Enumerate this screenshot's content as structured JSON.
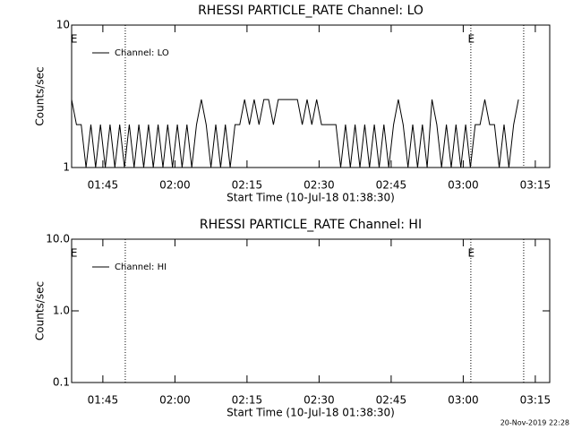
{
  "chart_data": [
    {
      "type": "line",
      "title": "RHESSI PARTICLE_RATE Channel: LO",
      "xlabel": "Start Time (10-Jul-18 01:38:30)",
      "ylabel": "Counts/sec",
      "log_y": true,
      "ylim": [
        1,
        10
      ],
      "yticks": [
        1,
        10
      ],
      "xlim": [
        0,
        5970
      ],
      "xticks": [
        {
          "value": 390,
          "label": "01:45"
        },
        {
          "value": 1290,
          "label": "02:00"
        },
        {
          "value": 2190,
          "label": "02:15"
        },
        {
          "value": 3090,
          "label": "02:30"
        },
        {
          "value": 3990,
          "label": "02:45"
        },
        {
          "value": 4890,
          "label": "03:00"
        },
        {
          "value": 5790,
          "label": "03:15"
        }
      ],
      "vlines": [
        670,
        4985,
        5645
      ],
      "annotations": [
        {
          "text": "E",
          "x": 30
        },
        {
          "text": "E",
          "x": 4990
        }
      ],
      "legend": "upper left",
      "series": [
        {
          "name": "Channel: LO",
          "color": "#000000",
          "x": [
            0,
            60,
            120,
            180,
            240,
            300,
            360,
            420,
            480,
            540,
            600,
            660,
            720,
            780,
            840,
            900,
            960,
            1020,
            1080,
            1140,
            1200,
            1260,
            1320,
            1380,
            1440,
            1500,
            1560,
            1620,
            1680,
            1740,
            1800,
            1860,
            1920,
            1980,
            2040,
            2100,
            2160,
            2220,
            2280,
            2340,
            2400,
            2460,
            2520,
            2580,
            2640,
            2700,
            2760,
            2820,
            2880,
            2940,
            3000,
            3060,
            3120,
            3180,
            3240,
            3300,
            3360,
            3420,
            3480,
            3540,
            3600,
            3660,
            3720,
            3780,
            3840,
            3900,
            3960,
            4020,
            4080,
            4140,
            4200,
            4260,
            4320,
            4380,
            4440,
            4500,
            4560,
            4620,
            4680,
            4740,
            4800,
            4860,
            4920,
            4980,
            5040,
            5100,
            5160,
            5220,
            5280,
            5340,
            5400,
            5460,
            5520,
            5580
          ],
          "values": [
            3,
            2,
            2,
            1,
            2,
            1,
            2,
            1,
            2,
            1,
            2,
            1,
            2,
            1,
            2,
            1,
            2,
            1,
            2,
            1,
            2,
            1,
            2,
            1,
            2,
            1,
            2,
            3,
            2,
            1,
            2,
            1,
            2,
            1,
            2,
            2,
            3,
            2,
            3,
            2,
            3,
            3,
            2,
            3,
            3,
            3,
            3,
            3,
            2,
            3,
            2,
            3,
            2,
            2,
            2,
            2,
            1,
            2,
            1,
            2,
            1,
            2,
            1,
            2,
            1,
            2,
            1,
            2,
            3,
            2,
            1,
            2,
            1,
            2,
            1,
            3,
            2,
            1,
            2,
            1,
            2,
            1,
            2,
            1,
            2,
            2,
            3,
            2,
            2,
            1,
            2,
            1,
            2,
            3
          ]
        }
      ]
    },
    {
      "type": "line",
      "title": "RHESSI PARTICLE_RATE Channel: HI",
      "xlabel": "Start Time (10-Jul-18 01:38:30)",
      "ylabel": "Counts/sec",
      "log_y": true,
      "ylim": [
        0.1,
        10
      ],
      "yticks": [
        0.1,
        {
          "value": 1,
          "label": "1.0"
        },
        {
          "value": 10,
          "label": "10.0"
        }
      ],
      "xlim": [
        0,
        5970
      ],
      "xticks": [
        {
          "value": 390,
          "label": "01:45"
        },
        {
          "value": 1290,
          "label": "02:00"
        },
        {
          "value": 2190,
          "label": "02:15"
        },
        {
          "value": 3090,
          "label": "02:30"
        },
        {
          "value": 3990,
          "label": "02:45"
        },
        {
          "value": 4890,
          "label": "03:00"
        },
        {
          "value": 5790,
          "label": "03:15"
        }
      ],
      "vlines": [
        670,
        4985,
        5645
      ],
      "annotations": [
        {
          "text": "E",
          "x": 30
        },
        {
          "text": "E",
          "x": 4990
        }
      ],
      "legend": "upper left",
      "series": [
        {
          "name": "Channel: HI",
          "color": "#000000",
          "x": [],
          "values": []
        }
      ]
    }
  ],
  "footer": "20-Nov-2019 22:28"
}
